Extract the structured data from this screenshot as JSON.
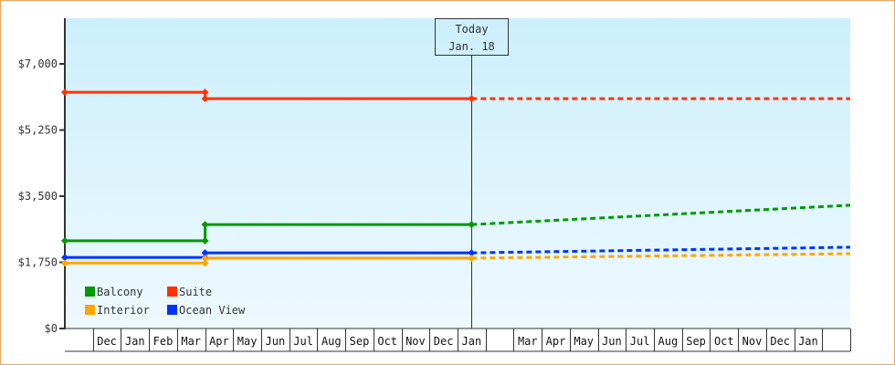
{
  "colors": {
    "frame_border": "#e8a860",
    "plot_bg_top": "#cceffc",
    "plot_bg_bottom": "#eef9fe",
    "axis": "#333333",
    "text": "#333333"
  },
  "today_marker": {
    "line1": "Today",
    "line2": "Jan. 18",
    "x_index": 14.5
  },
  "legend": [
    {
      "label": "Balcony",
      "color": "#009900"
    },
    {
      "label": "Suite",
      "color": "#ff3300"
    },
    {
      "label": "Interior",
      "color": "#ffa500"
    },
    {
      "label": "Ocean View",
      "color": "#0033ff"
    }
  ],
  "chart_data": {
    "type": "line",
    "title": "",
    "xlabel": "",
    "ylabel": "",
    "ylim": [
      0,
      8200
    ],
    "y_ticks": [
      {
        "value": 0,
        "label": "$0"
      },
      {
        "value": 1750,
        "label": "$1,750"
      },
      {
        "value": 3500,
        "label": "$3,500"
      },
      {
        "value": 5250,
        "label": "$5,250"
      },
      {
        "value": 7000,
        "label": "$7,000"
      }
    ],
    "x_months": [
      "",
      "Dec",
      "Jan",
      "Feb",
      "Mar",
      "Apr",
      "May",
      "Jun",
      "Jul",
      "Aug",
      "Sep",
      "Oct",
      "Nov",
      "Dec",
      "Jan",
      "",
      "Mar",
      "Apr",
      "May",
      "Jun",
      "Jul",
      "Aug",
      "Sep",
      "Oct",
      "Nov",
      "Dec",
      "Jan",
      ""
    ],
    "grid": false,
    "legend_position": "lower-left inside plot",
    "series": [
      {
        "name": "Suite",
        "color": "#ff3300",
        "actual": [
          [
            0,
            6250
          ],
          [
            5,
            6250
          ],
          [
            5,
            6080
          ],
          [
            14.5,
            6080
          ]
        ],
        "markers": [
          [
            0,
            6250
          ],
          [
            5,
            6250
          ],
          [
            5,
            6080
          ],
          [
            14.5,
            6080
          ]
        ],
        "projected": [
          [
            14.5,
            6080
          ],
          [
            28,
            6080
          ]
        ]
      },
      {
        "name": "Balcony",
        "color": "#009900",
        "actual": [
          [
            0,
            2320
          ],
          [
            5,
            2320
          ],
          [
            5,
            2750
          ],
          [
            14.5,
            2750
          ]
        ],
        "markers": [
          [
            0,
            2320
          ],
          [
            5,
            2320
          ],
          [
            5,
            2750
          ],
          [
            14.5,
            2750
          ]
        ],
        "projected": [
          [
            14.5,
            2750
          ],
          [
            28,
            3260
          ]
        ]
      },
      {
        "name": "Ocean View",
        "color": "#0033ff",
        "actual": [
          [
            0,
            1880
          ],
          [
            5,
            1880
          ],
          [
            5,
            2000
          ],
          [
            14.5,
            2000
          ]
        ],
        "markers": [
          [
            0,
            1880
          ],
          [
            5,
            1880
          ],
          [
            5,
            2000
          ],
          [
            14.5,
            2000
          ]
        ],
        "projected": [
          [
            14.5,
            2000
          ],
          [
            28,
            2150
          ]
        ]
      },
      {
        "name": "Interior",
        "color": "#ffa500",
        "actual": [
          [
            0,
            1730
          ],
          [
            5,
            1730
          ],
          [
            5,
            1860
          ],
          [
            14.5,
            1860
          ]
        ],
        "markers": [
          [
            0,
            1730
          ],
          [
            5,
            1730
          ],
          [
            5,
            1860
          ],
          [
            14.5,
            1860
          ]
        ],
        "projected": [
          [
            14.5,
            1860
          ],
          [
            28,
            1980
          ]
        ]
      }
    ]
  }
}
